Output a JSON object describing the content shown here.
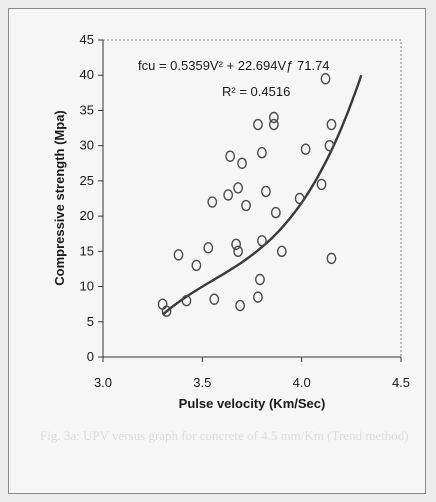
{
  "chart_data": {
    "type": "scatter",
    "title": "",
    "xlabel": "Pulse velocity (Km/Sec)",
    "ylabel": "Compressive strength (Mpa)",
    "xlim": [
      3.0,
      4.5
    ],
    "ylim": [
      0,
      45
    ],
    "xticks": [
      "3.0",
      "3.5",
      "4.0",
      "4.5"
    ],
    "yticks": [
      "0",
      "5",
      "10",
      "15",
      "20",
      "25",
      "30",
      "35",
      "40",
      "45"
    ],
    "grid": false,
    "points": [
      {
        "x": 3.3,
        "y": 7.5
      },
      {
        "x": 3.32,
        "y": 6.5
      },
      {
        "x": 3.38,
        "y": 14.5
      },
      {
        "x": 3.42,
        "y": 8.0
      },
      {
        "x": 3.47,
        "y": 13.0
      },
      {
        "x": 3.53,
        "y": 15.5
      },
      {
        "x": 3.55,
        "y": 22.0
      },
      {
        "x": 3.56,
        "y": 8.2
      },
      {
        "x": 3.63,
        "y": 23.0
      },
      {
        "x": 3.64,
        "y": 28.5
      },
      {
        "x": 3.67,
        "y": 16.0
      },
      {
        "x": 3.68,
        "y": 15.0
      },
      {
        "x": 3.68,
        "y": 24.0
      },
      {
        "x": 3.69,
        "y": 7.3
      },
      {
        "x": 3.7,
        "y": 27.5
      },
      {
        "x": 3.72,
        "y": 21.5
      },
      {
        "x": 3.78,
        "y": 33.0
      },
      {
        "x": 3.78,
        "y": 8.5
      },
      {
        "x": 3.79,
        "y": 11.0
      },
      {
        "x": 3.8,
        "y": 16.5
      },
      {
        "x": 3.8,
        "y": 29.0
      },
      {
        "x": 3.82,
        "y": 23.5
      },
      {
        "x": 3.86,
        "y": 34.0
      },
      {
        "x": 3.86,
        "y": 33.0
      },
      {
        "x": 3.87,
        "y": 20.5
      },
      {
        "x": 3.9,
        "y": 15.0
      },
      {
        "x": 3.99,
        "y": 22.5
      },
      {
        "x": 4.02,
        "y": 29.5
      },
      {
        "x": 4.1,
        "y": 24.5
      },
      {
        "x": 4.12,
        "y": 39.5
      },
      {
        "x": 4.14,
        "y": 30.0
      },
      {
        "x": 4.15,
        "y": 33.0
      },
      {
        "x": 4.15,
        "y": 14.0
      }
    ],
    "trendline": {
      "type": "polynomial",
      "x_range": [
        3.3,
        4.3
      ],
      "equation": "fcu = 0.5359V² + 22.694Vƒ 71.74",
      "r_squared": "R² = 0.4516"
    },
    "ghost_caption": "Fig. 3a: UPV versus graph for concrete of 4.5 mm/Km (Trend method)",
    "colors": {
      "marker": "#4a4a4a",
      "trend": "#3a3a3a",
      "axis": "#333333",
      "plot_bg": "#f6f6f6",
      "frame_border": "#8a8a8a"
    }
  }
}
